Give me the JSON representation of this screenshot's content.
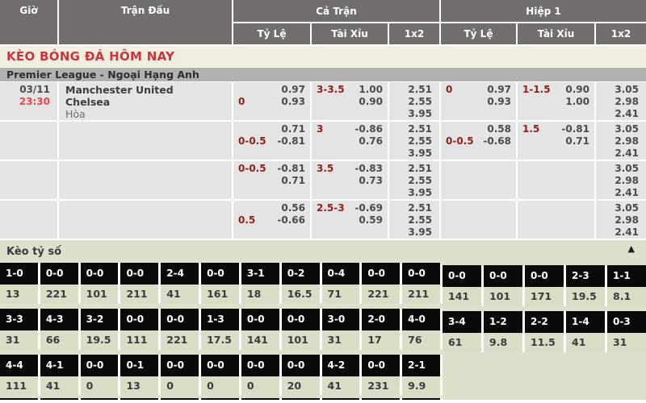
{
  "table_header": {
    "time": "Giờ",
    "match": "Trận Đấu",
    "full_time": "Cả Trận",
    "first_half": "Hiệp 1",
    "subcols": [
      "Tỷ Lệ",
      "Tài Xỉu",
      "1x2"
    ]
  },
  "page_title": "KÈO BÓNG ĐÁ HÔM NAY",
  "league_title": "Premier League - Ngoại Hạng Anh",
  "match": {
    "date": "03/11",
    "time": "23:30",
    "home": "Manchester United",
    "away": "Chelsea",
    "draw": "Hòa"
  },
  "odds_rows": [
    {
      "full_handicap": [
        [
          "",
          "0.97"
        ],
        [
          "0",
          "0.93"
        ]
      ],
      "full_overunder": [
        [
          "3-3.5",
          "1.00"
        ],
        [
          "",
          "0.90"
        ]
      ],
      "full_1x2": [
        "2.51",
        "2.55",
        "3.95"
      ],
      "half_handicap": [
        [
          "0",
          "0.97"
        ],
        [
          "",
          "0.93"
        ]
      ],
      "half_overunder": [
        [
          "1-1.5",
          "0.90"
        ],
        [
          "",
          "1.00"
        ]
      ],
      "half_1x2": [
        "3.05",
        "2.98",
        "2.41"
      ]
    },
    {
      "full_handicap": [
        [
          "",
          "0.71"
        ],
        [
          "0-0.5",
          "-0.81"
        ]
      ],
      "full_overunder": [
        [
          "3",
          "-0.86"
        ],
        [
          "",
          "0.76"
        ]
      ],
      "full_1x2": [
        "2.51",
        "2.55",
        "3.95"
      ],
      "half_handicap": [
        [
          "",
          "0.58"
        ],
        [
          "0-0.5",
          "-0.68"
        ]
      ],
      "half_overunder": [
        [
          "1.5",
          "-0.81"
        ],
        [
          "",
          "0.71"
        ]
      ],
      "half_1x2": [
        "3.05",
        "2.98",
        "2.41"
      ]
    },
    {
      "full_handicap": [
        [
          "0-0.5",
          "-0.81"
        ],
        [
          "",
          "0.71"
        ]
      ],
      "full_overunder": [
        [
          "3.5",
          "-0.83"
        ],
        [
          "",
          "0.73"
        ]
      ],
      "full_1x2": [
        "2.51",
        "2.55",
        "3.95"
      ],
      "half_handicap": [],
      "half_overunder": [],
      "half_1x2": [
        "3.05",
        "2.98",
        "2.41"
      ]
    },
    {
      "full_handicap": [
        [
          "",
          "0.56"
        ],
        [
          "0.5",
          "-0.66"
        ]
      ],
      "full_overunder": [
        [
          "2.5-3",
          "-0.69"
        ],
        [
          "",
          "0.59"
        ]
      ],
      "full_1x2": [
        "2.51",
        "2.55",
        "3.95"
      ],
      "half_handicap": [],
      "half_overunder": [],
      "half_1x2": [
        "3.05",
        "2.98",
        "2.41"
      ]
    }
  ],
  "score_section": {
    "title": "Kèo tỷ số",
    "collapse_icon": "▲",
    "rows": [
      {
        "left": [
          [
            "1-0",
            "13"
          ],
          [
            "0-0",
            "221"
          ],
          [
            "0-0",
            "101"
          ],
          [
            "0-0",
            "211"
          ],
          [
            "2-4",
            "41"
          ],
          [
            "0-0",
            "161"
          ],
          [
            "3-1",
            "18"
          ],
          [
            "0-2",
            "16.5"
          ],
          [
            "0-4",
            "71"
          ],
          [
            "0-0",
            "221"
          ],
          [
            "0-0",
            "211"
          ]
        ],
        "right": [
          [
            "0-0",
            "141"
          ],
          [
            "0-0",
            "101"
          ],
          [
            "0-0",
            "171"
          ],
          [
            "2-3",
            "19.5"
          ],
          [
            "1-1",
            "8.1"
          ]
        ]
      },
      {
        "left": [
          [
            "3-3",
            "31"
          ],
          [
            "4-3",
            "66"
          ],
          [
            "3-2",
            "19.5"
          ],
          [
            "0-0",
            "111"
          ],
          [
            "0-0",
            "221"
          ],
          [
            "1-3",
            "17.5"
          ],
          [
            "0-0",
            "141"
          ],
          [
            "0-0",
            "101"
          ],
          [
            "3-0",
            "31"
          ],
          [
            "2-0",
            "17"
          ],
          [
            "4-0",
            "76"
          ]
        ],
        "right": [
          [
            "3-4",
            "61"
          ],
          [
            "1-2",
            "9.8"
          ],
          [
            "2-2",
            "11.5"
          ],
          [
            "1-4",
            "41"
          ],
          [
            "0-3",
            "31"
          ]
        ]
      },
      {
        "left": [
          [
            "4-4",
            "111"
          ],
          [
            "4-1",
            "41"
          ],
          [
            "0-0",
            "0"
          ],
          [
            "0-1",
            "13"
          ],
          [
            "0-0",
            "0"
          ],
          [
            "0-0",
            "0"
          ],
          [
            "0-0",
            "0"
          ],
          [
            "0-0",
            "20"
          ],
          [
            "4-2",
            "41"
          ],
          [
            "0-0",
            "231"
          ],
          [
            "2-1",
            "9.9"
          ]
        ],
        "right": []
      }
    ],
    "partial_row_columns": 11
  },
  "colors": {
    "header_bg": "#716e6d",
    "row_bg": "#e4e4e4",
    "accent_red": "#c9363c",
    "handicap_maroon": "#8f2020",
    "time_red": "#e2484c",
    "section_bg": "#dde1cb",
    "score_cell_bg": "#0a0a08",
    "value_cell_bg": "#d9ddc6"
  }
}
